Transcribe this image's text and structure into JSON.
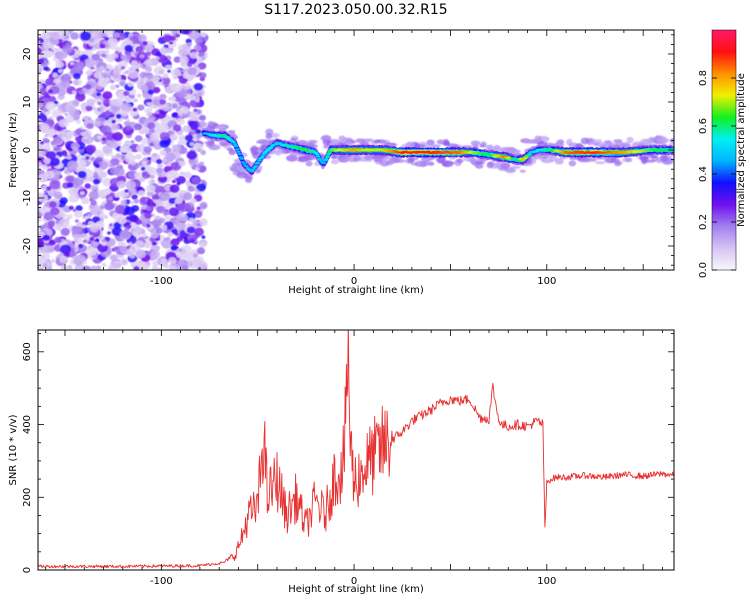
{
  "title": "S117.2023.050.00.32.R15",
  "colors": {
    "snr_line": "#e83030",
    "colormap": [
      "#f8f8f8",
      "#d6c4f4",
      "#a37ff0",
      "#7010ee",
      "#1010ff",
      "#00b4ff",
      "#00f0f0",
      "#10f020",
      "#f0f000",
      "#ff9000",
      "#ff1010",
      "#ff1a6a"
    ]
  },
  "chart_data": [
    {
      "type": "heatmap",
      "xlabel": "Height of straight line (km)",
      "ylabel": "Frequency (Hz)",
      "xlim": [
        -164,
        166
      ],
      "ylim": [
        -25,
        25
      ],
      "xticks": [
        -100,
        0,
        100
      ],
      "yticks": [
        -20,
        -10,
        0,
        10,
        20
      ],
      "grid": false,
      "colorbar": {
        "label": "Normalized spectral amplitude",
        "range": [
          0.0,
          1.0
        ],
        "ticks": [
          "0.0",
          "0.2",
          "0.4",
          "0.6",
          "0.8"
        ]
      },
      "ridge": [
        {
          "x": -78,
          "y": 3.5,
          "a": 0.45
        },
        {
          "x": -72,
          "y": 3.0,
          "a": 0.55
        },
        {
          "x": -67,
          "y": 3.0,
          "a": 0.6
        },
        {
          "x": -62,
          "y": 1.5,
          "a": 0.5
        },
        {
          "x": -57,
          "y": -3.0,
          "a": 0.45
        },
        {
          "x": -53,
          "y": -4.5,
          "a": 0.5
        },
        {
          "x": -49,
          "y": -2.0,
          "a": 0.5
        },
        {
          "x": -45,
          "y": 0.0,
          "a": 0.55
        },
        {
          "x": -40,
          "y": 1.5,
          "a": 0.5
        },
        {
          "x": -36,
          "y": 1.0,
          "a": 0.55
        },
        {
          "x": -30,
          "y": 0.5,
          "a": 0.6
        },
        {
          "x": -25,
          "y": 0.0,
          "a": 0.65
        },
        {
          "x": -20,
          "y": -0.5,
          "a": 0.55
        },
        {
          "x": -16,
          "y": -3.0,
          "a": 0.45
        },
        {
          "x": -12,
          "y": 0.0,
          "a": 0.65
        },
        {
          "x": -6,
          "y": 0.0,
          "a": 0.75
        },
        {
          "x": 0,
          "y": 0.0,
          "a": 0.8
        },
        {
          "x": 6,
          "y": 0.0,
          "a": 0.75
        },
        {
          "x": 15,
          "y": 0.0,
          "a": 0.75
        },
        {
          "x": 25,
          "y": -0.5,
          "a": 0.9
        },
        {
          "x": 40,
          "y": -0.5,
          "a": 0.9
        },
        {
          "x": 55,
          "y": -0.5,
          "a": 0.85
        },
        {
          "x": 62,
          "y": -0.5,
          "a": 0.7
        },
        {
          "x": 70,
          "y": -1.0,
          "a": 0.6
        },
        {
          "x": 78,
          "y": -1.5,
          "a": 0.85
        },
        {
          "x": 84,
          "y": -2.0,
          "a": 0.55
        },
        {
          "x": 88,
          "y": -2.0,
          "a": 0.8
        },
        {
          "x": 92,
          "y": -0.5,
          "a": 0.5
        },
        {
          "x": 96,
          "y": 0.0,
          "a": 0.55
        },
        {
          "x": 102,
          "y": 0.0,
          "a": 0.6
        },
        {
          "x": 110,
          "y": -0.5,
          "a": 0.85
        },
        {
          "x": 125,
          "y": -0.5,
          "a": 0.9
        },
        {
          "x": 140,
          "y": -0.5,
          "a": 0.8
        },
        {
          "x": 155,
          "y": 0.0,
          "a": 0.65
        },
        {
          "x": 166,
          "y": 0.0,
          "a": 0.6
        }
      ]
    },
    {
      "type": "line",
      "xlabel": "Height of straight line (km)",
      "ylabel": "SNR (10 * v/v)",
      "xlim": [
        -164,
        166
      ],
      "ylim": [
        0,
        660
      ],
      "xticks": [
        -100,
        0,
        100
      ],
      "yticks": [
        0,
        200,
        400,
        600
      ],
      "grid": false,
      "series": [
        {
          "x": [
            -164,
            -120,
            -80,
            -68,
            -62,
            -58,
            -55,
            -50,
            -47,
            -45,
            -40,
            -35,
            -30,
            -25,
            -20,
            -15,
            -10,
            -6,
            -4,
            -3,
            -2,
            -1,
            0,
            5,
            10,
            15,
            20,
            25,
            30,
            40,
            45,
            50,
            55,
            60,
            65,
            70,
            72,
            74,
            76,
            80,
            85,
            90,
            95,
            98,
            99,
            100,
            102,
            105,
            110,
            120,
            130,
            140,
            150,
            160,
            166
          ],
          "y": [
            10,
            10,
            12,
            20,
            40,
            90,
            150,
            170,
            380,
            200,
            250,
            150,
            200,
            120,
            190,
            150,
            260,
            280,
            420,
            660,
            330,
            300,
            240,
            280,
            310,
            340,
            360,
            380,
            410,
            440,
            460,
            470,
            465,
            470,
            420,
            415,
            505,
            440,
            400,
            395,
            400,
            395,
            410,
            400,
            110,
            240,
            250,
            255,
            255,
            260,
            255,
            262,
            258,
            265,
            260
          ]
        }
      ]
    }
  ]
}
